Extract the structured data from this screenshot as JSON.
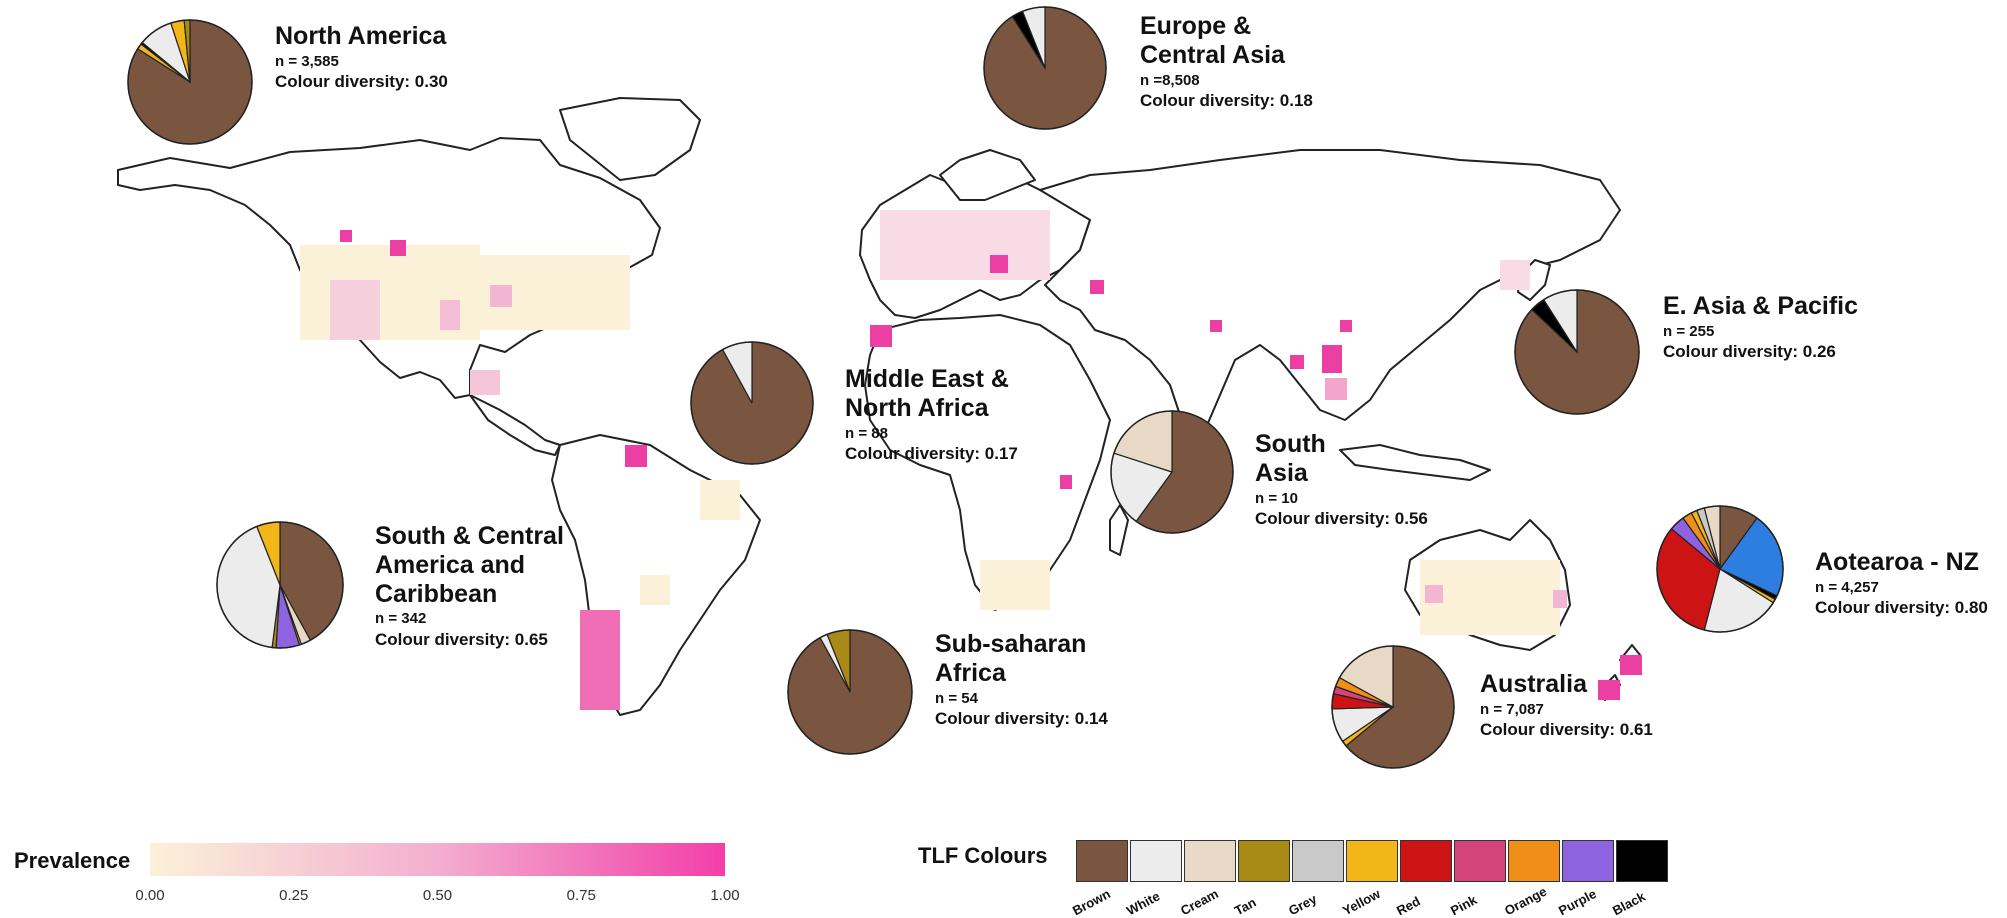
{
  "palette": {
    "Brown": "#7a5540",
    "White": "#ececec",
    "Cream": "#e8d9c6",
    "Tan": "#a98a16",
    "Grey": "#c9c9c9",
    "Yellow": "#f2b619",
    "Red": "#cc1414",
    "Pink": "#d2447a",
    "Orange": "#f08e1a",
    "Purple": "#8e63df",
    "Black": "#000000",
    "Blue": "#2e7de0"
  },
  "regions": [
    {
      "id": "north-america",
      "name": "North America",
      "n": "n = 3,585",
      "diversity": "Colour diversity: 0.30",
      "slices": [
        [
          "Brown",
          0.84
        ],
        [
          "Yellow",
          0.015
        ],
        [
          "Black",
          0.005
        ],
        [
          "White",
          0.09
        ],
        [
          "Yellow",
          0.035
        ],
        [
          "Tan",
          0.015
        ]
      ]
    },
    {
      "id": "europe",
      "name": "Europe &\nCentral Asia",
      "n": "n =8,508",
      "diversity": "Colour diversity: 0.18",
      "slices": [
        [
          "Brown",
          0.91
        ],
        [
          "Black",
          0.03
        ],
        [
          "White",
          0.06
        ]
      ]
    },
    {
      "id": "east-asia",
      "name": "E. Asia & Pacific",
      "n": "n = 255",
      "diversity": "Colour diversity: 0.26",
      "slices": [
        [
          "Brown",
          0.87
        ],
        [
          "Black",
          0.04
        ],
        [
          "White",
          0.09
        ]
      ]
    },
    {
      "id": "mena",
      "name": "Middle East &\nNorth Africa",
      "n": "n = 88",
      "diversity": "Colour diversity: 0.17",
      "slices": [
        [
          "Brown",
          0.92
        ],
        [
          "White",
          0.08
        ]
      ]
    },
    {
      "id": "south-asia",
      "name": "South\nAsia",
      "n": "n = 10",
      "diversity": "Colour diversity: 0.56",
      "slices": [
        [
          "Brown",
          0.6
        ],
        [
          "White",
          0.2
        ],
        [
          "Cream",
          0.2
        ]
      ]
    },
    {
      "id": "south-america",
      "name": "South & Central\nAmerica and\nCaribbean",
      "n": "n = 342",
      "diversity": "Colour diversity: 0.65",
      "slices": [
        [
          "Brown",
          0.42
        ],
        [
          "Cream",
          0.025
        ],
        [
          "Yellow",
          0.005
        ],
        [
          "Purple",
          0.06
        ],
        [
          "Tan",
          0.01
        ],
        [
          "White",
          0.42
        ],
        [
          "Yellow",
          0.06
        ]
      ]
    },
    {
      "id": "sub-saharan",
      "name": "Sub-saharan\nAfrica",
      "n": "n = 54",
      "diversity": "Colour diversity: 0.14",
      "slices": [
        [
          "Brown",
          0.92
        ],
        [
          "White",
          0.02
        ],
        [
          "Tan",
          0.06
        ]
      ]
    },
    {
      "id": "australia",
      "name": "Australia",
      "n": "n = 7,087",
      "diversity": "Colour diversity: 0.61",
      "slices": [
        [
          "Brown",
          0.64
        ],
        [
          "Yellow",
          0.015
        ],
        [
          "White",
          0.09
        ],
        [
          "Red",
          0.04
        ],
        [
          "Pink",
          0.02
        ],
        [
          "Orange",
          0.025
        ],
        [
          "Cream",
          0.17
        ]
      ]
    },
    {
      "id": "nz",
      "name": "Aotearoa - NZ",
      "n": "n = 4,257",
      "diversity": "Colour diversity: 0.80",
      "slices": [
        [
          "Brown",
          0.1
        ],
        [
          "Blue",
          0.22
        ],
        [
          "Black",
          0.01
        ],
        [
          "Yellow",
          0.01
        ],
        [
          "White",
          0.2
        ],
        [
          "Red",
          0.32
        ],
        [
          "Purple",
          0.04
        ],
        [
          "Orange",
          0.025
        ],
        [
          "Yellow",
          0.015
        ],
        [
          "Grey",
          0.02
        ],
        [
          "Cream",
          0.04
        ]
      ]
    }
  ],
  "legend": {
    "prevalence_title": "Prevalence",
    "ticks": [
      "0.00",
      "0.25",
      "0.50",
      "0.75",
      "1.00"
    ],
    "gradient": [
      "#fbf1d9",
      "#f2a7c8",
      "#f23fa8"
    ],
    "tlf_title": "TLF Colours",
    "tlf": [
      "Brown",
      "White",
      "Cream",
      "Tan",
      "Grey",
      "Yellow",
      "Red",
      "Pink",
      "Orange",
      "Purple",
      "Black"
    ]
  },
  "heat_low": "#fbf1d9",
  "heat_mid": "#f5c6d8",
  "heat_high": "#ec3fa4"
}
